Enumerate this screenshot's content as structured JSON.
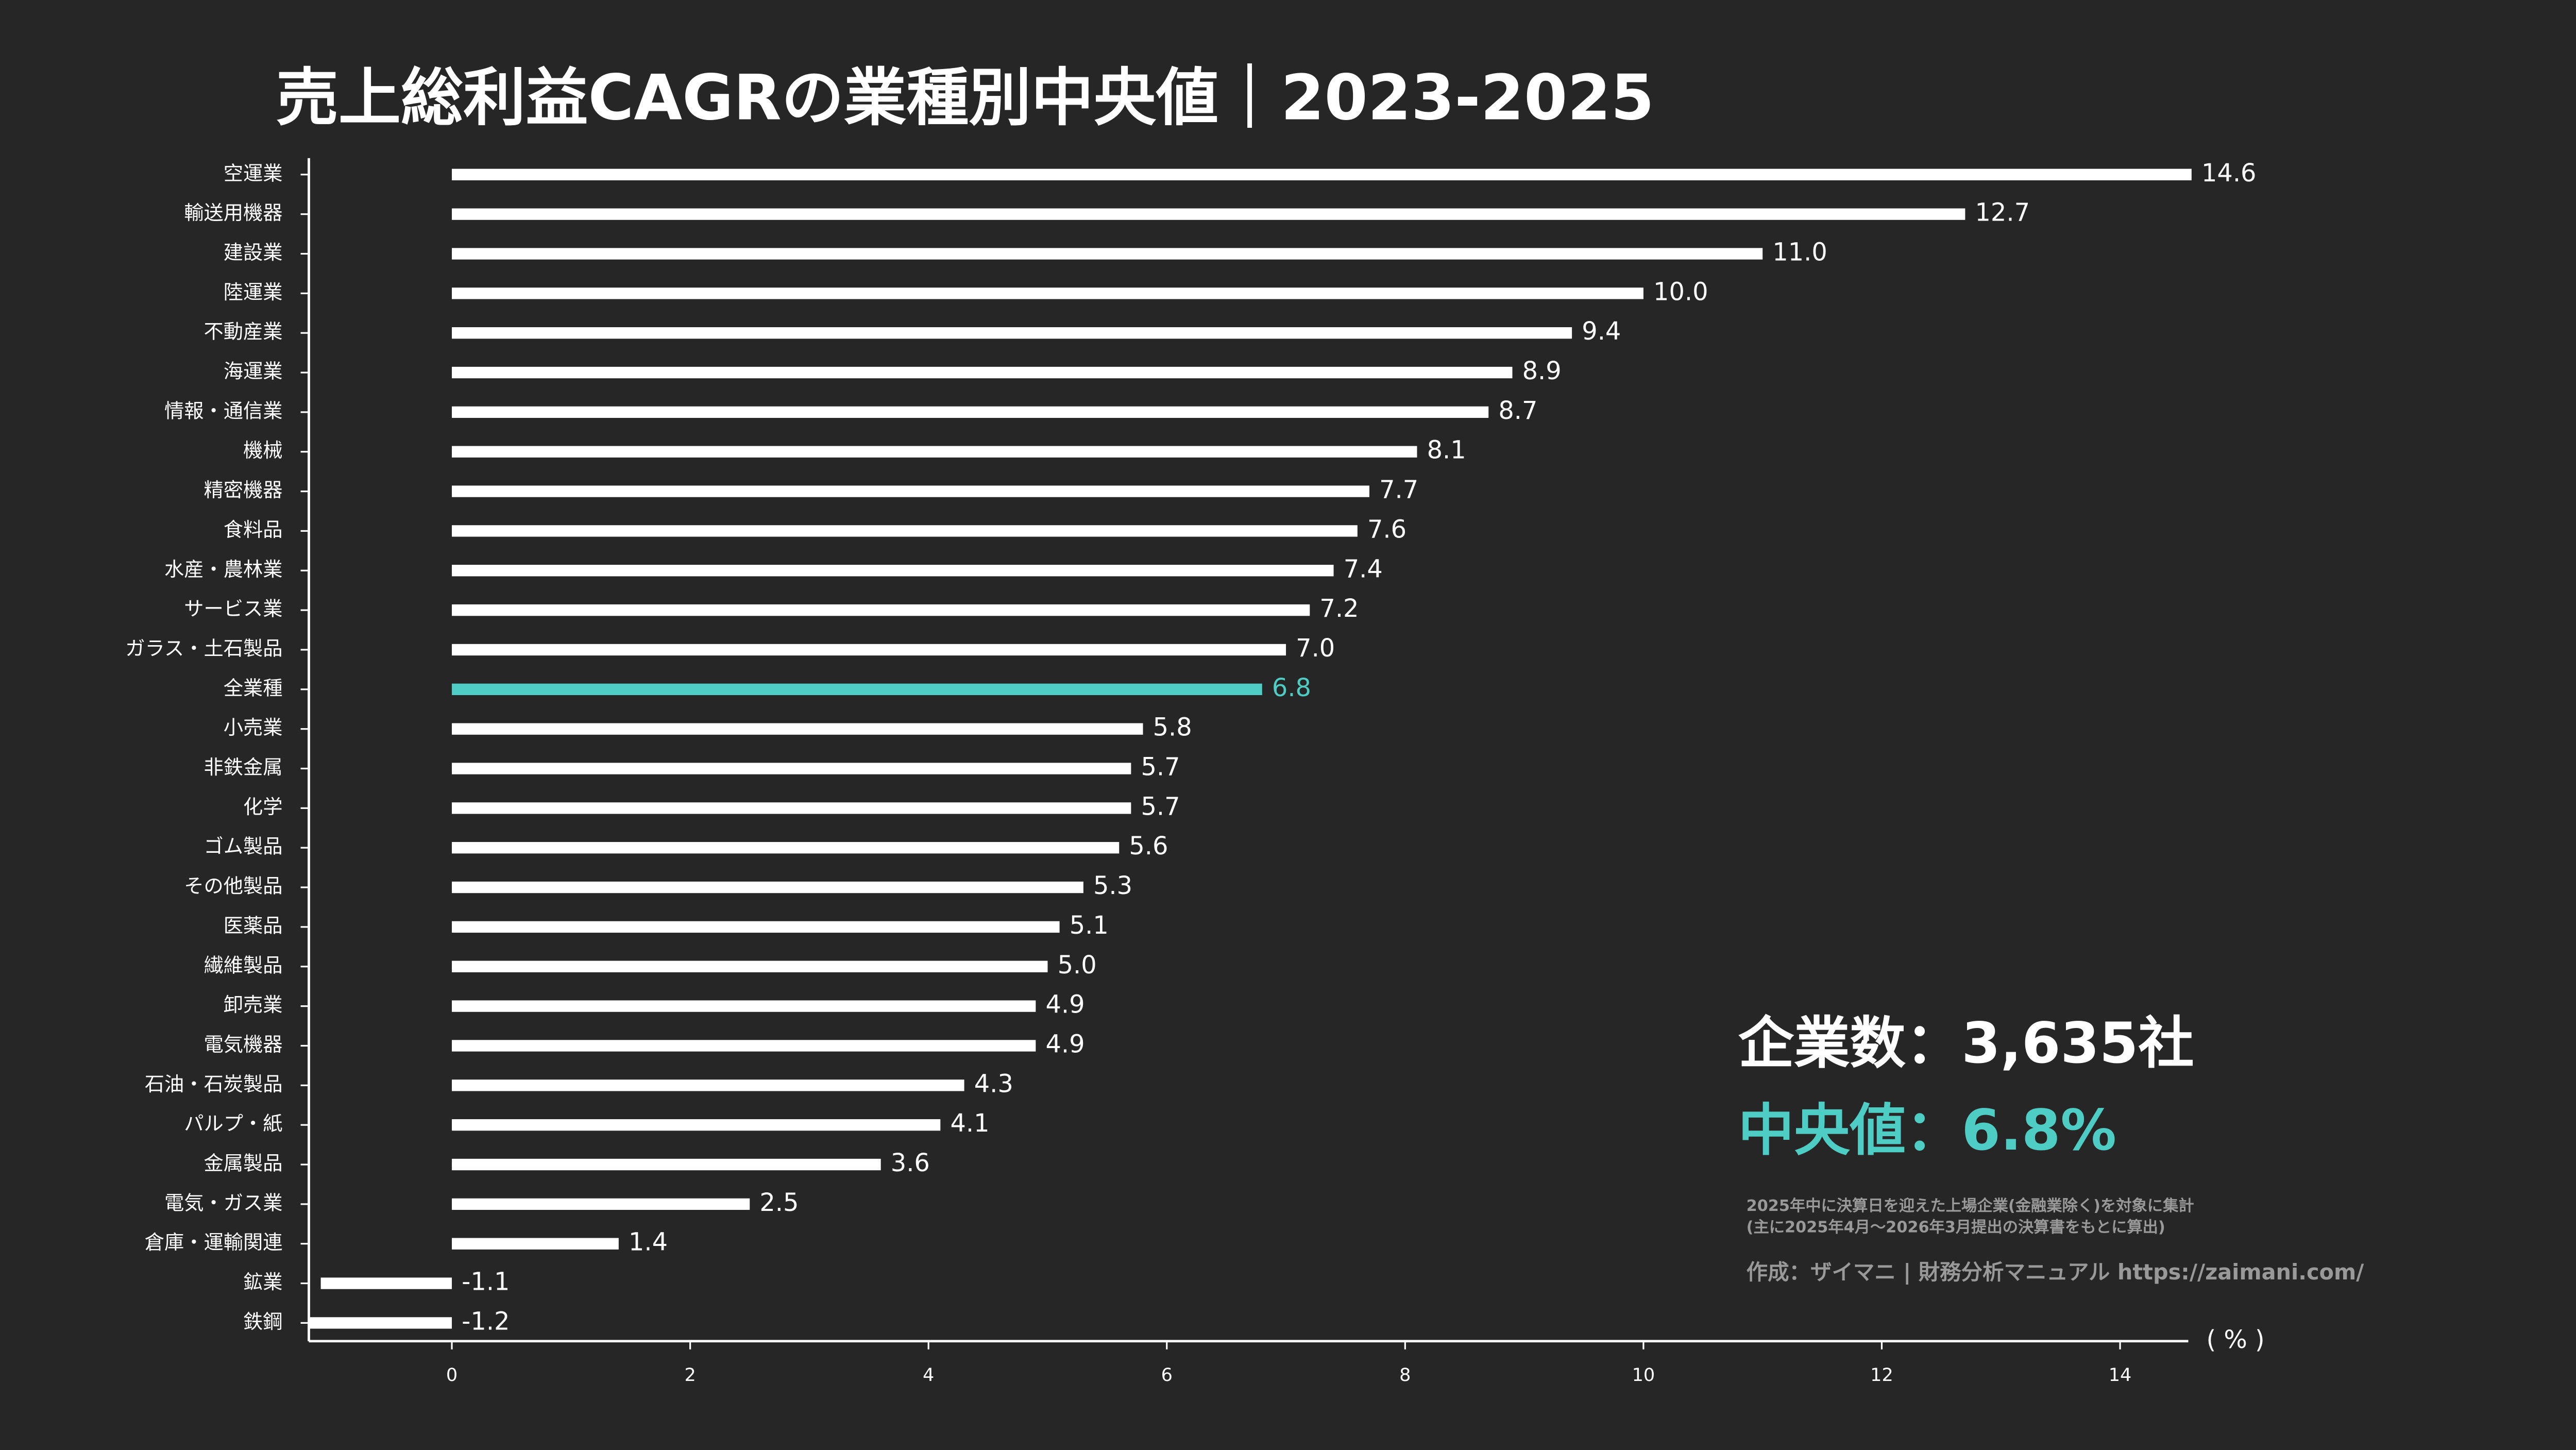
{
  "chart_data": {
    "type": "barh",
    "title": "売上総利益CAGRの業種別中央値｜2023-2025",
    "categories": [
      "空運業",
      "輸送用機器",
      "建設業",
      "陸運業",
      "不動産業",
      "海運業",
      "情報・通信業",
      "機械",
      "精密機器",
      "食料品",
      "水産・農林業",
      "サービス業",
      "ガラス・土石製品",
      "全業種",
      "小売業",
      "非鉄金属",
      "化学",
      "ゴム製品",
      "その他製品",
      "医薬品",
      "繊維製品",
      "卸売業",
      "電気機器",
      "石油・石炭製品",
      "パルプ・紙",
      "金属製品",
      "電気・ガス業",
      "倉庫・運輸関連",
      "鉱業",
      "鉄鋼"
    ],
    "values": [
      14.6,
      12.7,
      11.0,
      10.0,
      9.4,
      8.9,
      8.7,
      8.1,
      7.7,
      7.6,
      7.4,
      7.2,
      7.0,
      6.8,
      5.8,
      5.7,
      5.7,
      5.6,
      5.3,
      5.1,
      5.0,
      4.9,
      4.9,
      4.3,
      4.1,
      3.6,
      2.5,
      1.4,
      -1.1,
      -1.2
    ],
    "value_labels": [
      "14.6",
      "12.7",
      "11.0",
      "10.0",
      "9.4",
      "8.9",
      "8.7",
      "8.1",
      "7.7",
      "7.6",
      "7.4",
      "7.2",
      "7.0",
      "6.8",
      "5.8",
      "5.7",
      "5.7",
      "5.6",
      "5.3",
      "5.1",
      "5.0",
      "4.9",
      "4.9",
      "4.3",
      "4.1",
      "3.6",
      "2.5",
      "1.4",
      "-1.1",
      "-1.2"
    ],
    "colors": [
      "#ffffff",
      "#ffffff",
      "#ffffff",
      "#ffffff",
      "#ffffff",
      "#ffffff",
      "#ffffff",
      "#ffffff",
      "#ffffff",
      "#ffffff",
      "#ffffff",
      "#ffffff",
      "#ffffff",
      "#4ecdc4",
      "#ffffff",
      "#ffffff",
      "#ffffff",
      "#ffffff",
      "#ffffff",
      "#ffffff",
      "#ffffff",
      "#ffffff",
      "#ffffff",
      "#ffffff",
      "#ffffff",
      "#ffffff",
      "#ffffff",
      "#ffffff",
      "#ffffff",
      "#ffffff"
    ],
    "xlim": [
      -1.2,
      14.6
    ],
    "xticks": [
      0,
      2,
      4,
      6,
      8,
      10,
      12,
      14
    ],
    "x_unit": "( % )",
    "annotations": [
      "企業数：3,635社",
      "中央値：6.8%",
      "2025年中に決算日を迎えた上場企業(金融業除く)を対象に集計",
      "(主に2025年4月～2026年3月提出の決算書をもとに算出)",
      "作成：ザイマニ | 財務分析マニュアル https://zaimani.com/"
    ],
    "grid": false
  }
}
